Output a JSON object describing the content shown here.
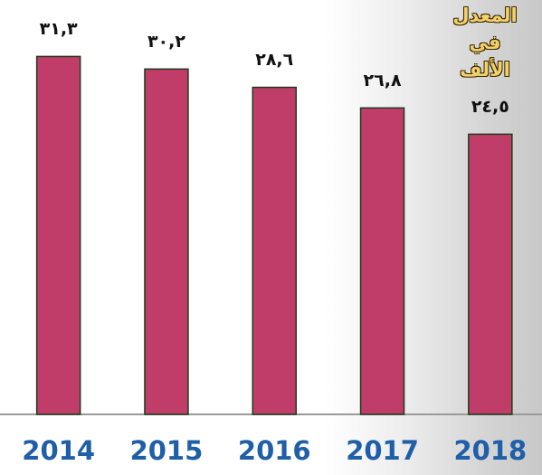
{
  "chart_data": {
    "type": "bar",
    "title": "المعدل في الألف",
    "categories": [
      "2014",
      "2015",
      "2016",
      "2017",
      "2018"
    ],
    "values": [
      31.3,
      30.2,
      28.6,
      26.8,
      24.5
    ],
    "value_labels": [
      "٣١,٣",
      "٣٠,٢",
      "٢٨,٦",
      "٢٦,٨",
      "٢٤,٥"
    ],
    "color": "#bf3d68",
    "ylim": [
      0,
      36
    ]
  }
}
